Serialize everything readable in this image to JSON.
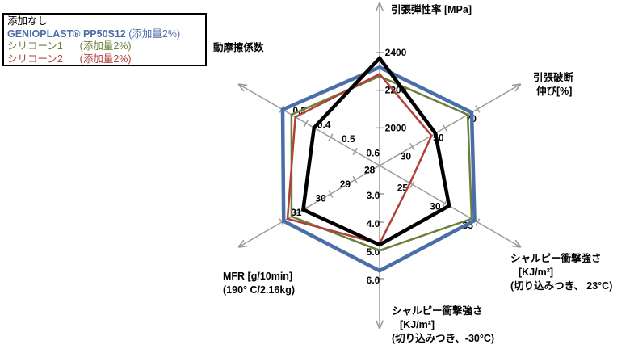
{
  "chart_data": {
    "type": "radar",
    "title": "",
    "axes": [
      {
        "label_lines": [
          "引張弾性率 [MPa]"
        ],
        "ticks": [
          "2000",
          "2200",
          "2400"
        ]
      },
      {
        "label_lines": [
          "引張破断",
          "伸び[%]"
        ],
        "ticks": [
          "30",
          "50",
          "70"
        ]
      },
      {
        "label_lines": [
          "シャルピー衝撃強さ",
          "[KJ/m²]",
          "(切り込みつき、 23°C)"
        ],
        "ticks": [
          "25",
          "30",
          "35"
        ]
      },
      {
        "label_lines": [
          "シャルピー衝撃強さ",
          "[KJ/m²]",
          "(切り込みつき、-30°C)"
        ],
        "ticks": [
          "3.0",
          "4.0",
          "5.0",
          "6.0"
        ]
      },
      {
        "label_lines": [
          "MFR [g/10min]",
          "(190° C/2.16kg)"
        ],
        "ticks": [
          "28",
          "29",
          "30",
          "31"
        ]
      },
      {
        "label_lines": [
          "動摩擦係数"
        ],
        "ticks": [
          "0.6",
          "0.5",
          "0.4",
          "0.3"
        ]
      }
    ],
    "series": [
      {
        "name": "添加なし",
        "color": "#000000",
        "values": [
          0.95,
          0.57,
          0.71,
          0.7,
          0.78,
          0.67
        ]
      },
      {
        "name": "GENIOPLAST® PP50S12 (添加量2%)",
        "color": "#4a6ea8",
        "values": [
          0.87,
          0.94,
          0.97,
          0.93,
          0.98,
          0.99
        ]
      },
      {
        "name": "シリコーン1 (添加量2%)",
        "color": "#6b7f3a",
        "values": [
          0.79,
          0.9,
          0.94,
          0.75,
          0.9,
          0.9
        ]
      },
      {
        "name": "シリコーン2 (添加量2%)",
        "color": "#b0403a",
        "values": [
          0.81,
          0.53,
          0.31,
          0.69,
          0.94,
          0.86
        ]
      }
    ]
  },
  "legend": {
    "entries": [
      {
        "line1": "添加なし",
        "line2": "",
        "color": "#000000"
      },
      {
        "line1": "GENIOPLAST® PP50S12",
        "line2": " (添加量2%)",
        "color": "#4a6ea8"
      },
      {
        "line1": "シリコーン1",
        "line2": "      (添加量2%)",
        "color": "#6b7f3a"
      },
      {
        "line1": "シリコーン2",
        "line2": "      (添加量2%)",
        "color": "#b0403a"
      }
    ]
  }
}
